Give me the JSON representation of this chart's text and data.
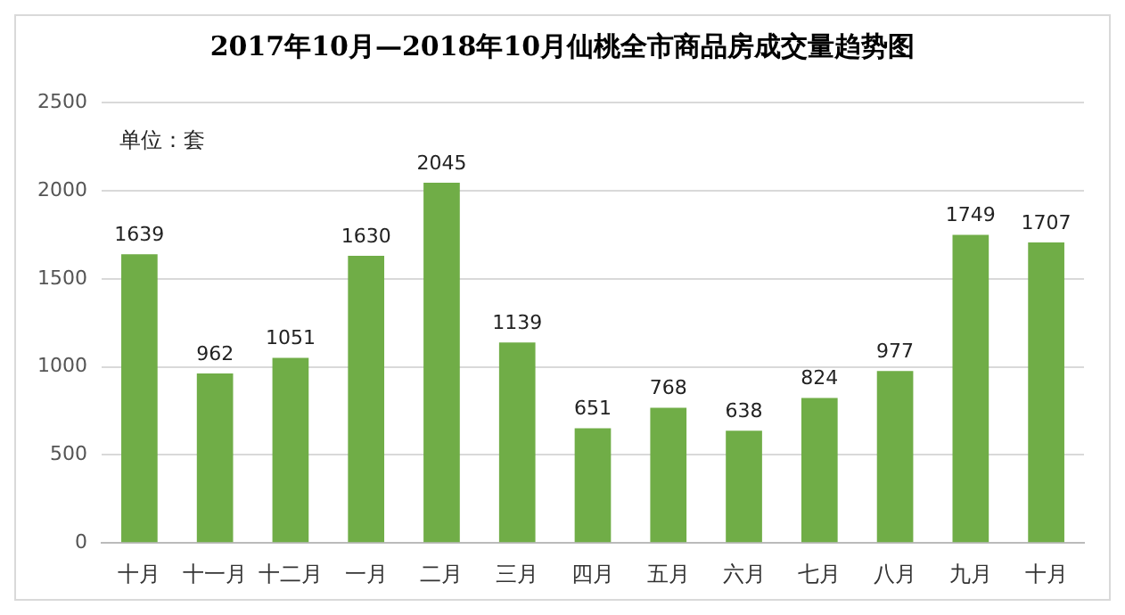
{
  "chart_data": {
    "type": "bar",
    "title": "2017年10月—2018年10月仙桃全市商品房成交量趋势图",
    "categories": [
      "十月",
      "十一月",
      "十二月",
      "一月",
      "二月",
      "三月",
      "四月",
      "五月",
      "六月",
      "七月",
      "八月",
      "九月",
      "十月"
    ],
    "values": [
      1639,
      962,
      1051,
      1630,
      2045,
      1139,
      651,
      768,
      638,
      824,
      977,
      1749,
      1707
    ],
    "color": "#70ad47",
    "ylim": [
      0,
      2500
    ],
    "yticks": [
      0,
      500,
      1000,
      1500,
      2000,
      2500
    ],
    "grid": "y",
    "data_labels": true,
    "annotations": [
      "单位：套"
    ]
  }
}
